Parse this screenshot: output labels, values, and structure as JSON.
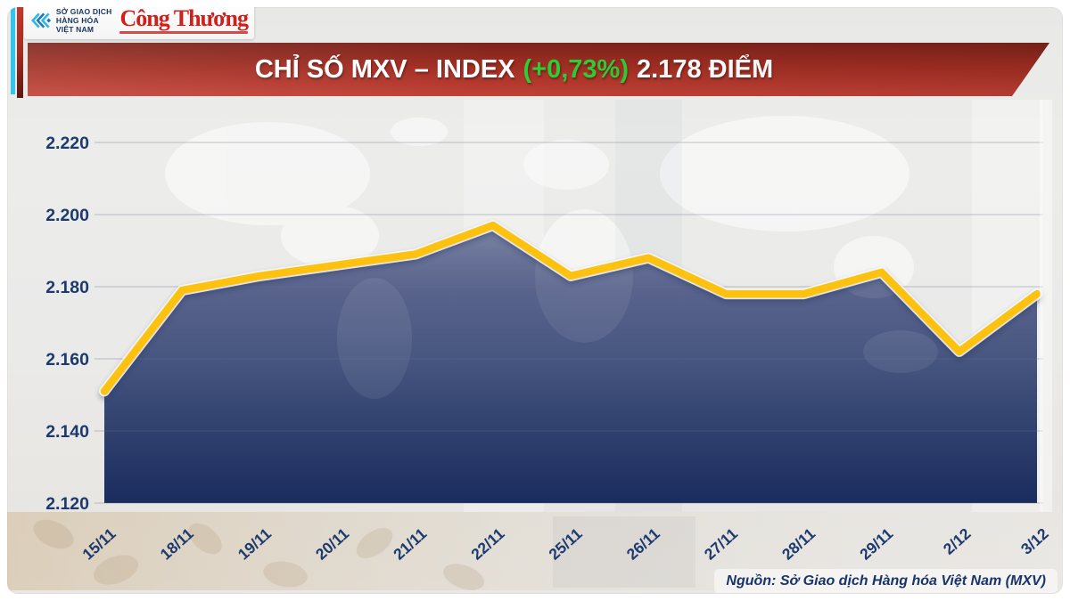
{
  "header": {
    "mxv_logo": {
      "line1": "SỞ GIAO DỊCH",
      "line2": "HÀNG HÓA",
      "line3": "VIỆT NAM"
    },
    "congthuong_logo": "Công Thương"
  },
  "banner": {
    "title_prefix": "CHỈ SỐ MXV – INDEX",
    "change": "(+0,73%)",
    "title_suffix": "2.178 ĐIỂM",
    "colors": {
      "background_top": "#7C231B",
      "background_bottom": "#C24136",
      "change_green": "#2FCE36",
      "text": "#FFFFFF"
    }
  },
  "chart_data": {
    "type": "area",
    "title": "CHỈ SỐ MXV – INDEX (+0,73%) 2.178 ĐIỂM",
    "unit": "điểm",
    "categories": [
      "15/11",
      "18/11",
      "19/11",
      "20/11",
      "21/11",
      "22/11",
      "25/11",
      "26/11",
      "27/11",
      "28/11",
      "29/11",
      "2/12",
      "3/12"
    ],
    "values": [
      2151,
      2179,
      2183,
      2186,
      2189,
      2197,
      2183,
      2188,
      2178,
      2178,
      2184,
      2162,
      2178
    ],
    "ylim": [
      2120,
      2220
    ],
    "yticks": [
      {
        "label": "2.220",
        "value": 2220
      },
      {
        "label": "2.200",
        "value": 2200
      },
      {
        "label": "2.180",
        "value": 2180
      },
      {
        "label": "2.160",
        "value": 2160
      },
      {
        "label": "2.140",
        "value": 2140
      },
      {
        "label": "2.120",
        "value": 2120
      }
    ],
    "grid": true,
    "legend": "none",
    "x_label_rotation": -42,
    "line_color": "#FDC20F",
    "area_gradient_stops": [
      {
        "offset": 0,
        "color": "#7E88A6"
      },
      {
        "offset": 0.24,
        "color": "#5A648D"
      },
      {
        "offset": 0.49,
        "color": "#475680"
      },
      {
        "offset": 0.73,
        "color": "#31426F"
      },
      {
        "offset": 1,
        "color": "#1A2C5E"
      }
    ],
    "axis_label_color": "#1C3A6E"
  },
  "footer": {
    "source": "Nguồn: Sở Giao dịch Hàng hóa Việt Nam (MXV)"
  }
}
